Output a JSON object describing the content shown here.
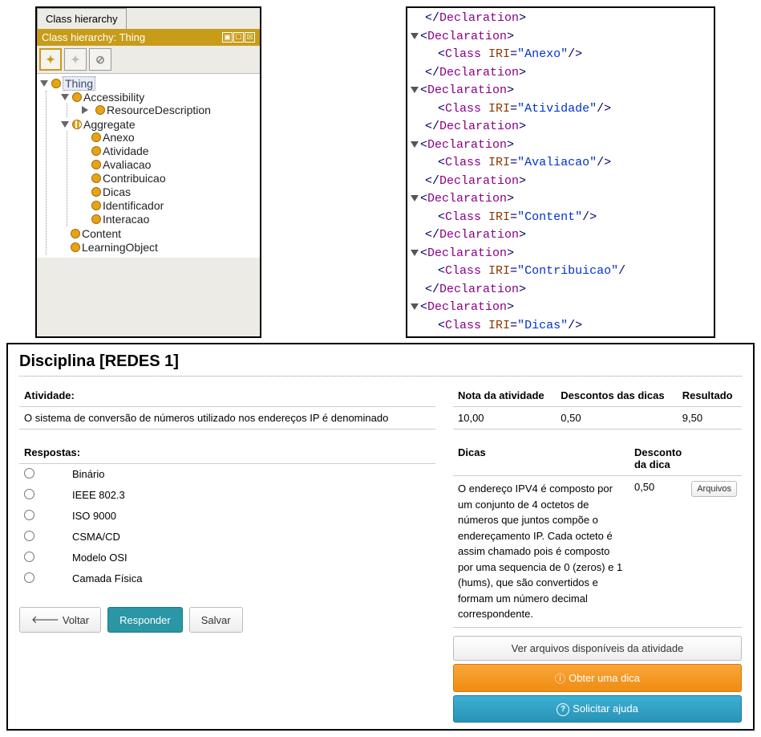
{
  "protege": {
    "tab_label": "Class hierarchy",
    "title_bar": "Class hierarchy: Thing",
    "win_controls": [
      "▣",
      "☐",
      "☒"
    ],
    "toolbar_icons": [
      "add-sibling-icon",
      "add-child-icon",
      "delete-icon"
    ],
    "tree": {
      "root": {
        "label": "Thing",
        "expanded": true
      },
      "children": [
        {
          "label": "Accessibility",
          "expanded": true,
          "children": [
            {
              "label": "ResourceDescription",
              "arrow": "closed"
            }
          ]
        },
        {
          "label": "Aggregate",
          "expanded": true,
          "striped": true,
          "children": [
            {
              "label": "Anexo"
            },
            {
              "label": "Atividade"
            },
            {
              "label": "Avaliacao"
            },
            {
              "label": "Contribuicao"
            },
            {
              "label": "Dicas"
            },
            {
              "label": "Identificador"
            },
            {
              "label": "Interacao"
            }
          ]
        },
        {
          "label": "Content"
        },
        {
          "label": "LearningObject"
        }
      ]
    }
  },
  "xml": {
    "declarations": [
      {
        "type": "close_only"
      },
      {
        "iri": "Anexo"
      },
      {
        "iri": "Atividade"
      },
      {
        "iri": "Avaliacao"
      },
      {
        "iri": "Content"
      },
      {
        "iri": "Contribuicao",
        "truncated": true
      },
      {
        "iri": "Dicas",
        "open_only": true
      }
    ],
    "tag_decl": "Declaration",
    "tag_class": "Class",
    "attr_name": "IRI"
  },
  "form": {
    "discipline_title": "Disciplina [REDES 1]",
    "activity_header": "Atividade:",
    "activity_text": "O sistema de conversão de números utilizado nos endereços IP é denominado",
    "answers_header": "Respostas:",
    "answers": [
      "Binário",
      "IEEE 802.3",
      "ISO 9000",
      "CSMA/CD",
      "Modelo OSI",
      "Camada Física"
    ],
    "buttons": {
      "back": "Voltar",
      "respond": "Responder",
      "save": "Salvar",
      "files": "Arquivos",
      "see_files": "Ver arquivos disponíveis da atividade",
      "get_hint": "Obter uma dica",
      "ask_help": "Solicitar ajuda"
    },
    "score": {
      "headers": {
        "grade": "Nota da atividade",
        "discount": "Descontos das dicas",
        "result": "Resultado"
      },
      "grade": "10,00",
      "discount": "0,50",
      "result": "9,50"
    },
    "hints": {
      "header_hint": "Dicas",
      "header_discount": "Desconto da dica",
      "row": {
        "text": "O endereço IPV4 é composto por um conjunto de 4 octetos de números que juntos compõe o endereçamento IP. Cada octeto é assim chamado pois é composto por uma sequencia de 0 (zeros) e 1 (hums), que são convertidos e formam um número decimal correspondente.",
        "discount": "0,50"
      }
    }
  },
  "colors": {
    "protege_accent": "#c89c19",
    "bullet": "#e8a315",
    "btn_teal": "#2a96a6",
    "btn_orange": "#f08c12",
    "btn_blue": "#2893b7"
  }
}
